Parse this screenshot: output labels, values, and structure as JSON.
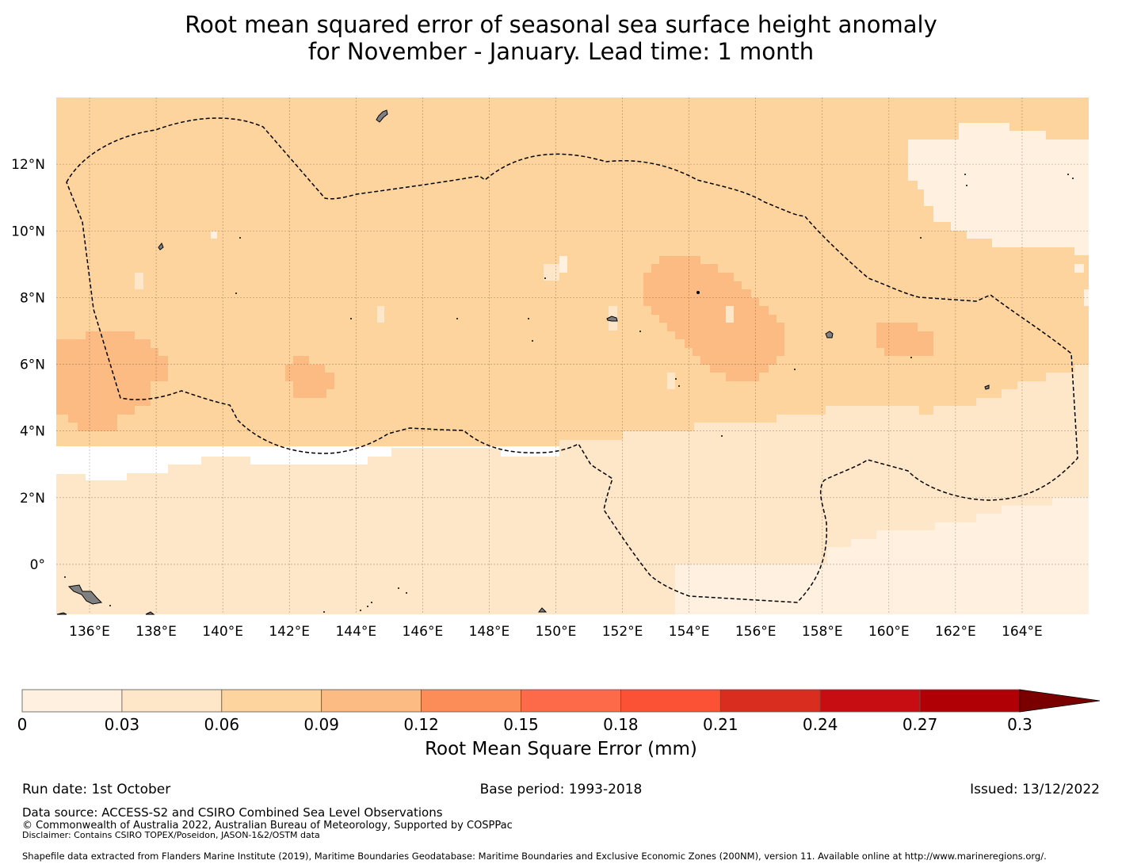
{
  "title": {
    "line1": "Root mean squared error of seasonal sea surface height anomaly",
    "line2": "for November - January. Lead time: 1 month"
  },
  "map": {
    "lon_range": [
      135,
      166
    ],
    "lat_range": [
      -1.5,
      14
    ],
    "lon_ticks": [
      "136°E",
      "138°E",
      "140°E",
      "142°E",
      "144°E",
      "146°E",
      "148°E",
      "150°E",
      "152°E",
      "154°E",
      "156°E",
      "158°E",
      "160°E",
      "162°E",
      "164°E"
    ],
    "lat_ticks": [
      "12°N",
      "10°N",
      "8°N",
      "6°N",
      "4°N",
      "2°N",
      "0°"
    ],
    "gridlines": true,
    "boundary_style": "dashed",
    "colors": {
      "band_0_03": "#fff0df",
      "band_03_06": "#fee6c8",
      "band_06_09": "#fdd49e",
      "band_09_12": "#fdbb84",
      "land": "#808080"
    }
  },
  "colorbar": {
    "ticks": [
      "0",
      "0.03",
      "0.06",
      "0.09",
      "0.12",
      "0.15",
      "0.18",
      "0.21",
      "0.24",
      "0.27",
      "0.3"
    ],
    "colors": [
      "#fff0df",
      "#fee6c8",
      "#fdd49e",
      "#fdbb84",
      "#fc8d59",
      "#fc6a4a",
      "#fb5235",
      "#d82d1f",
      "#c70d12",
      "#b00006"
    ],
    "extend_color": "#7a0000",
    "label": "Root Mean Square Error (mm)"
  },
  "footer": {
    "run_date": "Run date: 1st October",
    "base_period": "Base period: 1993-2018",
    "issued": "Issued: 13/12/2022",
    "data_source": "Data source: ACCESS-S2 and CSIRO Combined Sea Level Observations",
    "copyright": "© Commonwealth of Australia 2022, Australian Bureau of Meteorology, Supported by COSPPac",
    "disclaimer": "Disclaimer: Contains CSIRO TOPEX/Poseidon, JASON-1&2/OSTM data",
    "shapefile": "Shapefile data extracted from Flanders Marine Institute (2019), Maritime Boundaries Geodatabase: Maritime Boundaries and Exclusive Economic Zones (200NM), version 11. Available online at http://www.marineregions.org/."
  }
}
